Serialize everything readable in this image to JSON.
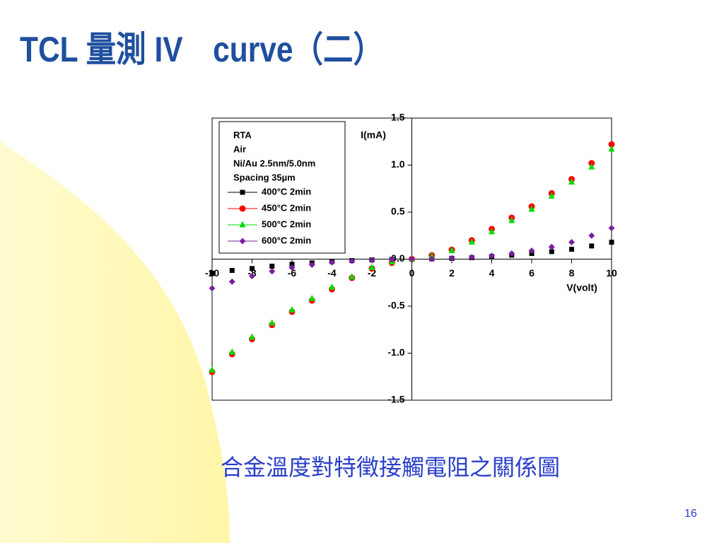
{
  "title": "TCL 量測 IV　curve（二）",
  "caption": "合金溫度對特徵接觸電阻之關係圖",
  "page_number": "16",
  "chart_data": {
    "type": "scatter",
    "x_label": "V(volt)",
    "y_label": "I(mA)",
    "annotations": [
      "RTA",
      "Air",
      "Ni/Au 2.5nm/5.0nm",
      "Spacing 35µm"
    ],
    "x": [
      -10,
      -9,
      -8,
      -7,
      -6,
      -5,
      -4,
      -3,
      -2,
      -1,
      0,
      1,
      2,
      3,
      4,
      5,
      6,
      7,
      8,
      9,
      10
    ],
    "series": [
      {
        "name": "400°C  2min",
        "color": "#000000",
        "marker": "square",
        "values": [
          -0.15,
          -0.12,
          -0.1,
          -0.075,
          -0.055,
          -0.04,
          -0.025,
          -0.015,
          -0.008,
          -0.003,
          0,
          0.003,
          0.008,
          0.015,
          0.028,
          0.042,
          0.06,
          0.08,
          0.105,
          0.14,
          0.18
        ]
      },
      {
        "name": "450°C  2min",
        "color": "#ff0000",
        "marker": "circle",
        "values": [
          -1.2,
          -1.01,
          -0.85,
          -0.7,
          -0.56,
          -0.44,
          -0.32,
          -0.2,
          -0.1,
          -0.04,
          0,
          0.04,
          0.1,
          0.2,
          0.32,
          0.44,
          0.56,
          0.7,
          0.85,
          1.02,
          1.22
        ]
      },
      {
        "name": "500°C  2min",
        "color": "#00dd00",
        "marker": "triangle",
        "values": [
          -1.18,
          -0.99,
          -0.83,
          -0.68,
          -0.54,
          -0.42,
          -0.3,
          -0.19,
          -0.09,
          -0.03,
          0,
          0.03,
          0.09,
          0.18,
          0.29,
          0.41,
          0.53,
          0.67,
          0.82,
          0.98,
          1.17
        ]
      },
      {
        "name": "600°C  2min",
        "color": "#7a1fa0",
        "marker": "diamond",
        "values": [
          -0.31,
          -0.24,
          -0.18,
          -0.13,
          -0.09,
          -0.06,
          -0.035,
          -0.02,
          -0.01,
          -0.003,
          0,
          0.003,
          0.01,
          0.02,
          0.035,
          0.06,
          0.09,
          0.13,
          0.18,
          0.25,
          0.33
        ]
      }
    ],
    "xlim": [
      -10,
      10
    ],
    "xticks": [
      -10,
      -8,
      -6,
      -4,
      -2,
      0,
      2,
      4,
      6,
      8,
      10
    ],
    "ylim": [
      -1.5,
      1.5
    ],
    "yticks": [
      {
        "value": -1.5,
        "label": "-1.5"
      },
      {
        "value": -1,
        "label": "-1.0"
      },
      -0.5,
      {
        "value": 0,
        "label": "0.0"
      },
      0.5,
      {
        "value": 1,
        "label": "1.0"
      },
      1.5
    ]
  }
}
